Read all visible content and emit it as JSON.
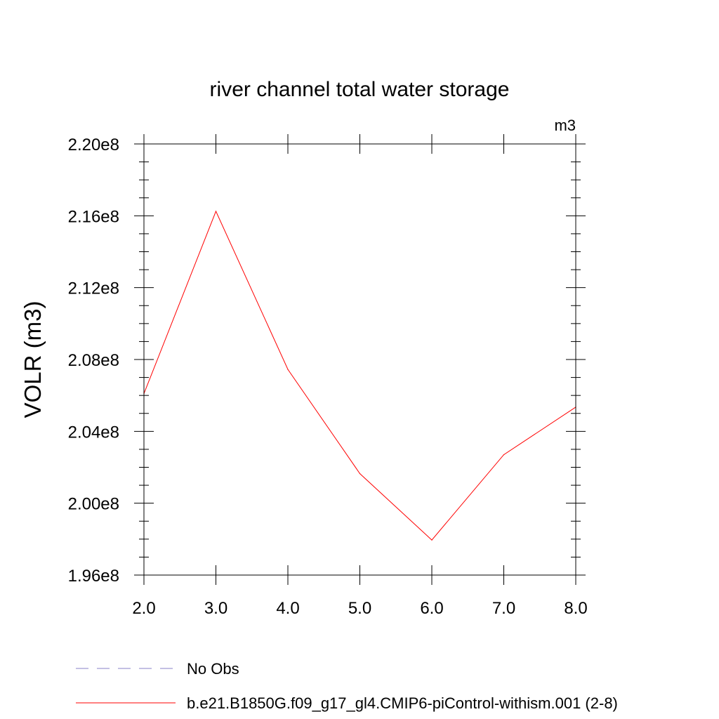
{
  "chart_data": {
    "type": "line",
    "title": "river channel total water storage",
    "units_label": "m3",
    "ylabel": "VOLR  (m3)",
    "xlabel": "",
    "xlim": [
      2.0,
      8.0
    ],
    "ylim": [
      196000000.0,
      220000000.0
    ],
    "x_ticks": [
      2.0,
      3.0,
      4.0,
      5.0,
      6.0,
      7.0,
      8.0
    ],
    "x_tick_labels": [
      "2.0",
      "3.0",
      "4.0",
      "5.0",
      "6.0",
      "7.0",
      "8.0"
    ],
    "y_ticks": [
      196000000.0,
      200000000.0,
      204000000.0,
      208000000.0,
      212000000.0,
      216000000.0,
      220000000.0
    ],
    "y_tick_labels": [
      "1.96e8",
      "2.00e8",
      "2.04e8",
      "2.08e8",
      "2.12e8",
      "2.16e8",
      "2.20e8"
    ],
    "grid": false,
    "legend_position": "bottom",
    "series": [
      {
        "name": "b.e21.B1850G.f09_g17_gl4.CMIP6-piControl-withism.001 (2-8)",
        "color": "#ff0000",
        "style": "solid",
        "x": [
          2.0,
          3.0,
          4.0,
          5.0,
          6.0,
          7.0,
          8.0
        ],
        "y": [
          206100000.0,
          216250000.0,
          207450000.0,
          201650000.0,
          197950000.0,
          202700000.0,
          205350000.0
        ]
      }
    ],
    "legend": [
      {
        "label": "No Obs",
        "color": "#8a80c8",
        "style": "dashed"
      },
      {
        "label": "b.e21.B1850G.f09_g17_gl4.CMIP6-piControl-withism.001 (2-8)",
        "color": "#ff0000",
        "style": "solid"
      }
    ]
  }
}
